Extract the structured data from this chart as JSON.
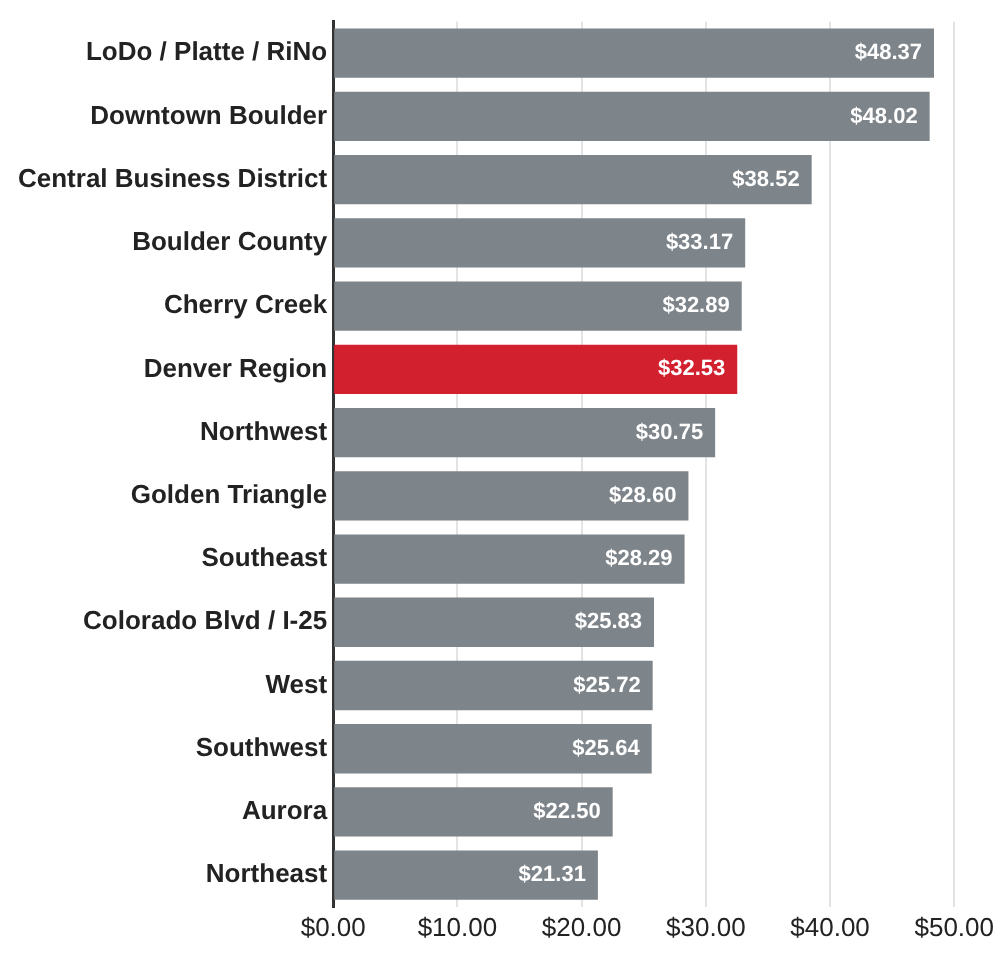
{
  "chart_data": {
    "type": "bar",
    "orientation": "horizontal",
    "categories": [
      "LoDo / Platte / RiNo",
      "Downtown Boulder",
      "Central Business District",
      "Boulder County",
      "Cherry Creek",
      "Denver Region",
      "Northwest",
      "Golden Triangle",
      "Southeast",
      "Colorado Blvd / I-25",
      "West",
      "Southwest",
      "Aurora",
      "Northeast"
    ],
    "values": [
      48.37,
      48.02,
      38.52,
      33.17,
      32.89,
      32.53,
      30.75,
      28.6,
      28.29,
      25.83,
      25.72,
      25.64,
      22.5,
      21.31
    ],
    "colors": [
      "#7d848a",
      "#7d848a",
      "#7d848a",
      "#7d848a",
      "#7d848a",
      "#d2202f",
      "#7d848a",
      "#7d848a",
      "#7d848a",
      "#7d848a",
      "#7d848a",
      "#7d848a",
      "#7d848a",
      "#7d848a"
    ],
    "value_labels": [
      "$48.37",
      "$48.02",
      "$38.52",
      "$33.17",
      "$32.89",
      "$32.53",
      "$30.75",
      "$28.60",
      "$28.29",
      "$25.83",
      "$25.72",
      "$25.64",
      "$22.50",
      "$21.31"
    ],
    "xlim": [
      0,
      50
    ],
    "xticks": [
      {
        "value": 0,
        "label": "$0.00"
      },
      {
        "value": 10,
        "label": "$10.00"
      },
      {
        "value": 20,
        "label": "$20.00"
      },
      {
        "value": 30,
        "label": "$30.00"
      },
      {
        "value": 40,
        "label": "$40.00"
      },
      {
        "value": 50,
        "label": "$50.00"
      }
    ],
    "grid": "x",
    "legend": false
  }
}
